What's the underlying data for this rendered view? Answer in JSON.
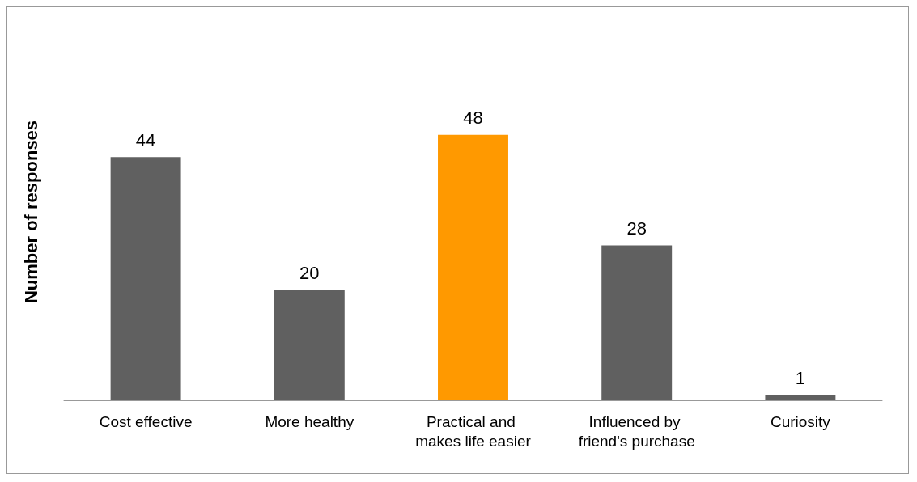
{
  "chart_data": {
    "type": "bar",
    "ylabel": "Number of responses",
    "categories": [
      "Cost effective",
      "More healthy",
      "Practical and makes life easier",
      "Influenced by friend's purchase",
      "Curiosity"
    ],
    "values": [
      44,
      20,
      48,
      28,
      1
    ],
    "colors": [
      "#606060",
      "#606060",
      "#ff9900",
      "#606060",
      "#606060"
    ],
    "data_labels": true
  }
}
